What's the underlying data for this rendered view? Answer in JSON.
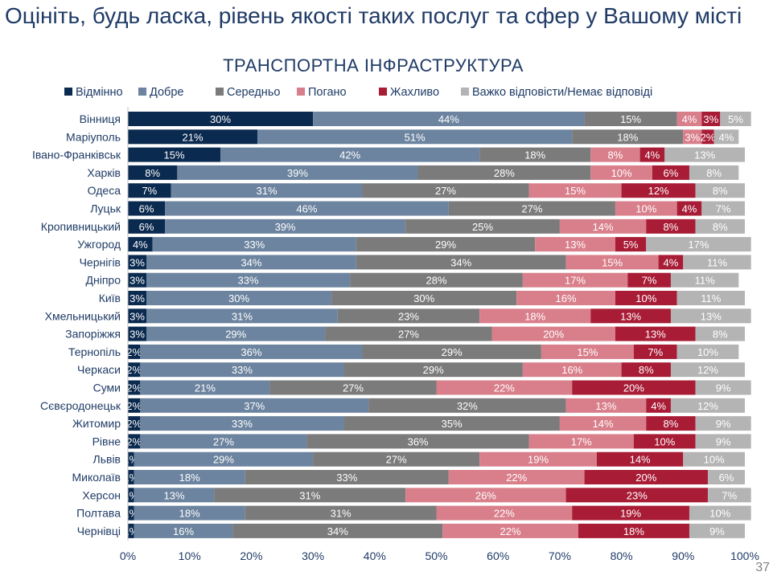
{
  "page_title": "Оцініть, будь ласка, рівень якості таких послуг та сфер у Вашому місті",
  "page_number": "37",
  "chart_data": {
    "type": "bar",
    "orientation": "horizontal",
    "stacked": true,
    "title": "ТРАНСПОРТНА ІНФРАСТРУКТУРА",
    "xlim": [
      0,
      100
    ],
    "x_ticks": [
      "0%",
      "10%",
      "20%",
      "30%",
      "40%",
      "50%",
      "60%",
      "70%",
      "80%",
      "90%",
      "100%"
    ],
    "legend_position": "top",
    "categories": [
      "Вінниця",
      "Маріуполь",
      "Івано-Франківськ",
      "Харків",
      "Одеса",
      "Луцьк",
      "Кропивницький",
      "Ужгород",
      "Чернігів",
      "Дніпро",
      "Київ",
      "Хмельницький",
      "Запоріжжя",
      "Тернопіль",
      "Черкаси",
      "Суми",
      "Сєвєродонецьк",
      "Житомир",
      "Рівне",
      "Львів",
      "Миколаїв",
      "Херсон",
      "Полтава",
      "Чернівці"
    ],
    "series": [
      {
        "name": "Відмінно",
        "color": "#0b2a4f",
        "values": [
          30,
          21,
          15,
          8,
          7,
          6,
          6,
          4,
          3,
          3,
          3,
          3,
          3,
          2,
          2,
          2,
          2,
          2,
          2,
          1,
          1,
          1,
          1,
          1
        ]
      },
      {
        "name": "Добре",
        "color": "#6c849f",
        "values": [
          44,
          51,
          42,
          39,
          31,
          46,
          39,
          33,
          34,
          33,
          30,
          31,
          29,
          36,
          33,
          21,
          37,
          33,
          27,
          29,
          18,
          13,
          18,
          16
        ]
      },
      {
        "name": "Середньо",
        "color": "#7b7b7b",
        "values": [
          15,
          18,
          18,
          28,
          27,
          27,
          25,
          29,
          34,
          28,
          30,
          23,
          27,
          29,
          29,
          27,
          32,
          35,
          36,
          27,
          33,
          31,
          31,
          34
        ]
      },
      {
        "name": "Погано",
        "color": "#d97f8b",
        "values": [
          4,
          3,
          8,
          10,
          15,
          10,
          14,
          13,
          15,
          17,
          16,
          18,
          20,
          15,
          16,
          22,
          13,
          14,
          17,
          19,
          22,
          26,
          22,
          22
        ]
      },
      {
        "name": "Жахливо",
        "color": "#a81c36",
        "values": [
          3,
          2,
          4,
          6,
          12,
          4,
          8,
          5,
          4,
          7,
          10,
          13,
          13,
          7,
          8,
          20,
          4,
          8,
          10,
          14,
          20,
          23,
          19,
          18
        ]
      },
      {
        "name": "Важко відповісти/Немає відповіді",
        "color": "#b4b4b4",
        "values": [
          5,
          4,
          13,
          8,
          8,
          7,
          8,
          17,
          11,
          11,
          11,
          13,
          8,
          10,
          12,
          9,
          12,
          9,
          9,
          10,
          6,
          7,
          10,
          9
        ]
      }
    ]
  }
}
